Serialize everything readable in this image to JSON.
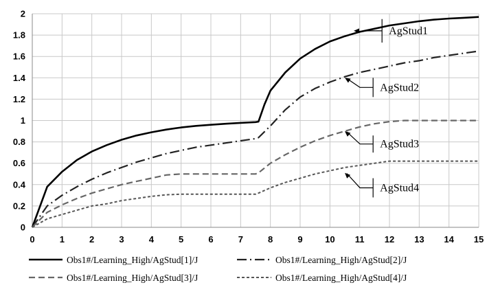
{
  "chart_data": {
    "type": "line",
    "title": "",
    "xlabel": "",
    "ylabel": "",
    "xlim": [
      0,
      15
    ],
    "ylim": [
      0,
      2
    ],
    "x_ticks": [
      "0",
      "1",
      "2",
      "3",
      "4",
      "5",
      "6",
      "7",
      "8",
      "9",
      "10",
      "11",
      "12",
      "13",
      "14",
      "15"
    ],
    "y_ticks": [
      "0",
      "0.2",
      "0.4",
      "0.6",
      "0.8",
      "1",
      "1.2",
      "1.4",
      "1.6",
      "1.8",
      "2"
    ],
    "grid": true,
    "legend_position": "bottom",
    "series": [
      {
        "name": "Obs1#/Learning_High/AgStud[1]/J",
        "style": "solid",
        "color": "#000000",
        "points": [
          [
            0,
            0
          ],
          [
            0.5,
            0.38
          ],
          [
            1,
            0.52
          ],
          [
            1.5,
            0.63
          ],
          [
            2,
            0.71
          ],
          [
            2.5,
            0.77
          ],
          [
            3,
            0.82
          ],
          [
            3.5,
            0.86
          ],
          [
            4,
            0.89
          ],
          [
            4.5,
            0.915
          ],
          [
            5,
            0.935
          ],
          [
            5.5,
            0.95
          ],
          [
            6,
            0.96
          ],
          [
            6.5,
            0.97
          ],
          [
            7,
            0.978
          ],
          [
            7.5,
            0.985
          ],
          [
            7.6,
            0.99
          ],
          [
            7.8,
            1.15
          ],
          [
            8,
            1.28
          ],
          [
            8.5,
            1.45
          ],
          [
            9,
            1.58
          ],
          [
            9.5,
            1.67
          ],
          [
            10,
            1.74
          ],
          [
            10.5,
            1.79
          ],
          [
            11,
            1.83
          ],
          [
            11.5,
            1.86
          ],
          [
            12,
            1.89
          ],
          [
            12.5,
            1.91
          ],
          [
            13,
            1.93
          ],
          [
            13.5,
            1.945
          ],
          [
            14,
            1.955
          ],
          [
            14.5,
            1.962
          ],
          [
            15,
            1.97
          ]
        ]
      },
      {
        "name": "Obs1#/Learning_High/AgStud[2]/J",
        "style": "dashdot",
        "color": "#222222",
        "points": [
          [
            0,
            0
          ],
          [
            0.5,
            0.2
          ],
          [
            1,
            0.3
          ],
          [
            1.5,
            0.38
          ],
          [
            2,
            0.45
          ],
          [
            2.5,
            0.51
          ],
          [
            3,
            0.56
          ],
          [
            3.5,
            0.61
          ],
          [
            4,
            0.65
          ],
          [
            4.5,
            0.69
          ],
          [
            5,
            0.72
          ],
          [
            5.5,
            0.75
          ],
          [
            6,
            0.77
          ],
          [
            6.5,
            0.79
          ],
          [
            7,
            0.81
          ],
          [
            7.5,
            0.83
          ],
          [
            7.6,
            0.84
          ],
          [
            8,
            0.95
          ],
          [
            8.5,
            1.1
          ],
          [
            9,
            1.22
          ],
          [
            9.5,
            1.3
          ],
          [
            10,
            1.36
          ],
          [
            10.5,
            1.41
          ],
          [
            11,
            1.45
          ],
          [
            11.5,
            1.48
          ],
          [
            12,
            1.51
          ],
          [
            12.5,
            1.54
          ],
          [
            13,
            1.56
          ],
          [
            13.5,
            1.59
          ],
          [
            14,
            1.61
          ],
          [
            14.5,
            1.63
          ],
          [
            15,
            1.65
          ]
        ]
      },
      {
        "name": "Obs1#/Learning_High/AgStud[3]/J",
        "style": "dashed",
        "color": "#666666",
        "points": [
          [
            0,
            0
          ],
          [
            0.5,
            0.14
          ],
          [
            1,
            0.21
          ],
          [
            1.5,
            0.27
          ],
          [
            2,
            0.32
          ],
          [
            2.5,
            0.36
          ],
          [
            3,
            0.4
          ],
          [
            3.5,
            0.43
          ],
          [
            4,
            0.46
          ],
          [
            4.5,
            0.49
          ],
          [
            5,
            0.5
          ],
          [
            5.5,
            0.5
          ],
          [
            6,
            0.5
          ],
          [
            6.5,
            0.5
          ],
          [
            7,
            0.5
          ],
          [
            7.5,
            0.5
          ],
          [
            7.6,
            0.51
          ],
          [
            8,
            0.6
          ],
          [
            8.5,
            0.68
          ],
          [
            9,
            0.75
          ],
          [
            9.5,
            0.81
          ],
          [
            10,
            0.86
          ],
          [
            10.5,
            0.9
          ],
          [
            11,
            0.94
          ],
          [
            11.5,
            0.97
          ],
          [
            12,
            0.99
          ],
          [
            12.5,
            1.0
          ],
          [
            13,
            1.0
          ],
          [
            14,
            1.0
          ],
          [
            15,
            1.0
          ]
        ]
      },
      {
        "name": "Obs1#/Learning_High/AgStud[4]/J",
        "style": "dotted",
        "color": "#555555",
        "points": [
          [
            0,
            0
          ],
          [
            0.5,
            0.08
          ],
          [
            1,
            0.12
          ],
          [
            1.5,
            0.16
          ],
          [
            2,
            0.2
          ],
          [
            2.5,
            0.22
          ],
          [
            3,
            0.25
          ],
          [
            3.5,
            0.27
          ],
          [
            4,
            0.29
          ],
          [
            4.5,
            0.305
          ],
          [
            5,
            0.31
          ],
          [
            5.5,
            0.31
          ],
          [
            6,
            0.31
          ],
          [
            6.5,
            0.31
          ],
          [
            7,
            0.31
          ],
          [
            7.5,
            0.31
          ],
          [
            7.6,
            0.32
          ],
          [
            8,
            0.37
          ],
          [
            8.5,
            0.42
          ],
          [
            9,
            0.46
          ],
          [
            9.5,
            0.5
          ],
          [
            10,
            0.53
          ],
          [
            10.5,
            0.56
          ],
          [
            11,
            0.58
          ],
          [
            11.5,
            0.6
          ],
          [
            12,
            0.62
          ],
          [
            12.5,
            0.62
          ],
          [
            13,
            0.62
          ],
          [
            14,
            0.62
          ],
          [
            15,
            0.62
          ]
        ]
      }
    ],
    "annotations": [
      {
        "text": "AgStud1",
        "arrow_to": [
          10.8,
          1.84
        ],
        "bracket_x": 11.75,
        "bracket_y": [
          1.73,
          1.95
        ]
      },
      {
        "text": "AgStud2",
        "arrow_to": [
          10.5,
          1.4
        ],
        "bracket_x": 11.45,
        "bracket_y": [
          1.22,
          1.4
        ]
      },
      {
        "text": "AgStud3",
        "arrow_to": [
          10.5,
          0.9
        ],
        "bracket_x": 11.45,
        "bracket_y": [
          0.7,
          0.86
        ]
      },
      {
        "text": "AgStud4",
        "arrow_to": [
          10.5,
          0.51
        ],
        "bracket_x": 11.45,
        "bracket_y": [
          0.28,
          0.46
        ]
      }
    ]
  }
}
